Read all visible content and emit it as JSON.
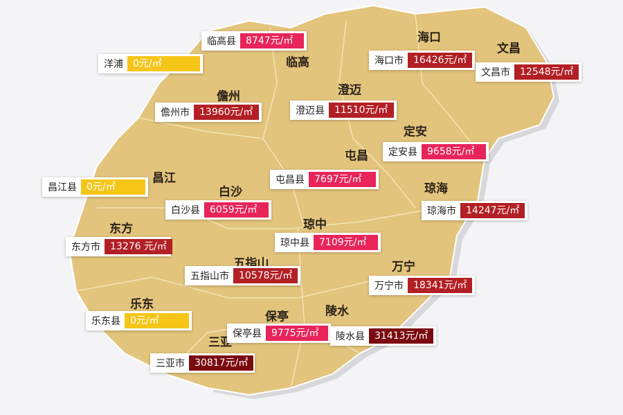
{
  "colors": {
    "land": "#e3c47c",
    "border": "#f3e3b4",
    "sea": "#f4f4f6",
    "zero": "#f5c518",
    "low": "#e8245a",
    "mid": "#b21f24",
    "high": "#7a0a10"
  },
  "regions": [
    "临高",
    "海口",
    "文昌",
    "儋州",
    "澄迈",
    "定安",
    "屯昌",
    "昌江",
    "白沙",
    "琼海",
    "东方",
    "琼中",
    "五指山",
    "万宁",
    "乐东",
    "保亭",
    "陵水",
    "三亚"
  ],
  "labels": [
    {
      "name": "临高县",
      "price": "8747元/㎡",
      "color": "#e8245a"
    },
    {
      "name": "洋浦",
      "price": "0元/㎡",
      "color": "#f5c518"
    },
    {
      "name": "儋州市",
      "price": "13960元/㎡",
      "color": "#b21f24"
    },
    {
      "name": "澄迈县",
      "price": "11510元/㎡",
      "color": "#b21f24"
    },
    {
      "name": "海口市",
      "price": "16426元/㎡",
      "color": "#b21f24"
    },
    {
      "name": "文昌市",
      "price": "12548元/㎡",
      "color": "#b21f24"
    },
    {
      "name": "定安县",
      "price": "9658元/㎡",
      "color": "#e8245a"
    },
    {
      "name": "屯昌县",
      "price": "7697元/㎡",
      "color": "#e8245a"
    },
    {
      "name": "昌江县",
      "price": "0元/㎡",
      "color": "#f5c518"
    },
    {
      "name": "白沙县",
      "price": "6059元/㎡",
      "color": "#e8245a"
    },
    {
      "name": "琼海市",
      "price": "14247元/㎡",
      "color": "#b21f24"
    },
    {
      "name": "东方市",
      "price": "13276 元/㎡",
      "color": "#b21f24"
    },
    {
      "name": "琼中县",
      "price": "7109元/㎡",
      "color": "#e8245a"
    },
    {
      "name": "五指山市",
      "price": "10578元/㎡",
      "color": "#b21f24"
    },
    {
      "name": "万宁市",
      "price": "18341元/㎡",
      "color": "#b21f24"
    },
    {
      "name": "乐东县",
      "price": "0元/㎡",
      "color": "#f5c518"
    },
    {
      "name": "保亭县",
      "price": "9775元/㎡",
      "color": "#e8245a"
    },
    {
      "name": "陵水县",
      "price": "31413元/㎡",
      "color": "#7a0a10"
    },
    {
      "name": "三亚市",
      "price": "30817元/㎡",
      "color": "#7a0a10"
    }
  ]
}
